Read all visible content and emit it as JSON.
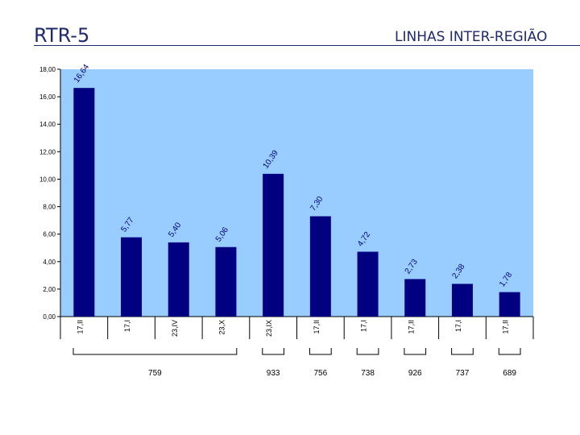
{
  "header": {
    "title": "RTR-5",
    "subtitle": "LINHAS INTER-REGIÃO"
  },
  "colors": {
    "plot_bg": "#99ccff",
    "bar": "#000080",
    "text": "#1f2a6e"
  },
  "chart_data": {
    "type": "bar",
    "categories": [
      "17,II",
      "17,I",
      "23,IV",
      "23,X",
      "23,IX",
      "17,II",
      "17,I",
      "17,II",
      "17,I",
      "17,II"
    ],
    "values": [
      16.64,
      5.77,
      5.4,
      5.06,
      10.39,
      7.3,
      4.72,
      2.73,
      2.38,
      1.78
    ],
    "value_labels": [
      "16,64",
      "5,77",
      "5,40",
      "5,06",
      "10,39",
      "7,30",
      "4,72",
      "2,73",
      "2,38",
      "1,78"
    ],
    "ylim": [
      0,
      18
    ],
    "y_ticks": [
      0,
      2,
      4,
      6,
      8,
      10,
      12,
      14,
      16,
      18
    ],
    "y_tick_labels": [
      "0,00",
      "2,00",
      "4,00",
      "6,00",
      "8,00",
      "10,00",
      "12,00",
      "14,00",
      "16,00",
      "18,00"
    ],
    "groups": [
      {
        "label": "759",
        "start": 0,
        "end": 3
      },
      {
        "label": "933",
        "start": 4,
        "end": 4
      },
      {
        "label": "756",
        "start": 5,
        "end": 5
      },
      {
        "label": "738",
        "start": 6,
        "end": 6
      },
      {
        "label": "926",
        "start": 7,
        "end": 7
      },
      {
        "label": "737",
        "start": 8,
        "end": 8
      },
      {
        "label": "689",
        "start": 9,
        "end": 9
      }
    ],
    "grid": false
  }
}
